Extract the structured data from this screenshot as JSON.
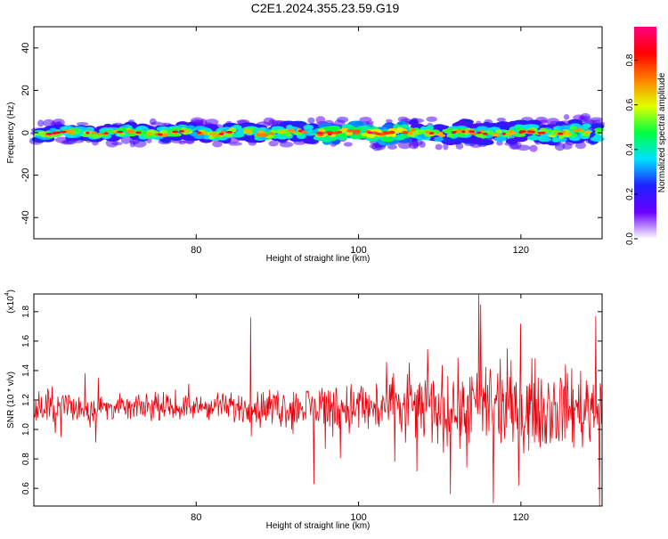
{
  "title": "C2E1.2024.355.23.59.G19",
  "chart_data": [
    {
      "type": "heatmap",
      "title": "C2E1.2024.355.23.59.G19",
      "xlabel": "Height of straight line (km)",
      "ylabel": "Frequency (Hz)",
      "xlim": [
        60,
        130
      ],
      "ylim": [
        -50,
        50
      ],
      "xticks": [
        80,
        100,
        120
      ],
      "yticks": [
        -40,
        -20,
        0,
        20,
        40
      ],
      "xtick_labels": [
        "80",
        "100",
        "120"
      ],
      "ytick_labels": [
        "-40",
        "-20",
        "0",
        "20",
        "40"
      ],
      "colorbar": {
        "label": "Normalized spectral amplitude",
        "range": [
          0,
          0.95
        ],
        "ticks": [
          0.0,
          0.2,
          0.4,
          0.6,
          0.8
        ],
        "tick_labels": [
          "0.0",
          "0.2",
          "0.4",
          "0.6",
          "0.8"
        ],
        "colors": [
          "#ffffff",
          "#6a00ff",
          "#2020ff",
          "#00e0ff",
          "#00ff40",
          "#e0ff00",
          "#ff8000",
          "#ff0000",
          "#ff0080"
        ]
      },
      "band": {
        "center_frequency_hz": 0,
        "half_width_hz_low_height": 3,
        "half_width_hz_high_height": 5,
        "peak_amplitude": 0.9
      }
    },
    {
      "type": "line",
      "xlabel": "Height of straight line (km)",
      "ylabel": "SNR (10 * v/v)",
      "yscale_label": "(x10",
      "yscale_exp": "4",
      "xlim": [
        60,
        130
      ],
      "ylim": [
        0.48,
        1.92
      ],
      "xticks": [
        80,
        100,
        120
      ],
      "yticks": [
        0.6,
        0.8,
        1.0,
        1.2,
        1.4,
        1.6,
        1.8
      ],
      "xtick_labels": [
        "80",
        "100",
        "120"
      ],
      "ytick_labels": [
        "0.6",
        "0.8",
        "1.0",
        "1.2",
        "1.4",
        "1.6",
        "1.8"
      ],
      "color": "#e8000b",
      "series_summary": {
        "mean": 1.15,
        "n_points": 900,
        "max": 1.92,
        "max_x": 114.8,
        "min": 0.48,
        "min_x": 129.7
      }
    }
  ]
}
